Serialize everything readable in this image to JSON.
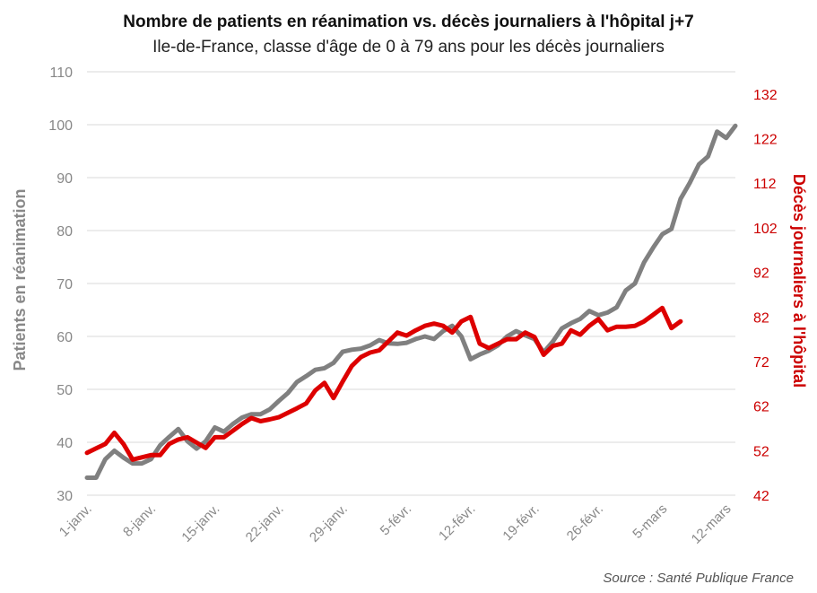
{
  "chart_data": {
    "type": "line",
    "title": "Nombre de patients en réanimation vs. décès journaliers à l'hôpital j+7",
    "subtitle": "Ile-de-France, classe d'âge de 0 à 79 ans pour les décès journaliers",
    "source": "Source : Santé Publique France",
    "ylabel_left": "Patients en réanimation",
    "ylabel_right": "Décès journaliers  à l'hôpital",
    "ylim_left": [
      30,
      110
    ],
    "yticks_left": [
      30,
      40,
      50,
      60,
      70,
      80,
      90,
      100,
      110
    ],
    "ylim_right": [
      42,
      137
    ],
    "yticks_right": [
      42,
      52,
      62,
      72,
      82,
      92,
      102,
      112,
      122,
      132
    ],
    "x_range_days": [
      1,
      72
    ],
    "xticks": [
      {
        "day": 1,
        "label": "1-janv."
      },
      {
        "day": 8,
        "label": "8-janv."
      },
      {
        "day": 15,
        "label": "15-janv."
      },
      {
        "day": 22,
        "label": "22-janv."
      },
      {
        "day": 29,
        "label": "29-janv."
      },
      {
        "day": 36,
        "label": "5-févr."
      },
      {
        "day": 43,
        "label": "12-févr."
      },
      {
        "day": 50,
        "label": "19-févr."
      },
      {
        "day": 57,
        "label": "26-févr."
      },
      {
        "day": 64,
        "label": "5-mars"
      },
      {
        "day": 71,
        "label": "12-mars"
      }
    ],
    "grid": true,
    "series": [
      {
        "axis": "left",
        "color": "#808080",
        "start_day": 1,
        "values": [
          33.3,
          33.3,
          36.8,
          38.4,
          37.1,
          36.0,
          36.0,
          36.8,
          39.4,
          41.0,
          42.5,
          40.2,
          38.8,
          40.2,
          42.8,
          42.0,
          43.5,
          44.7,
          45.3,
          45.3,
          46.2,
          47.8,
          49.3,
          51.4,
          52.5,
          53.7,
          54.0,
          55.0,
          57.1,
          57.5,
          57.7,
          58.3,
          59.3,
          58.7,
          58.6,
          58.8,
          59.5,
          60.0,
          59.5,
          61.0,
          62.0,
          60.0,
          55.7,
          56.6,
          57.3,
          58.3,
          60.0,
          61.0,
          60.2,
          59.5,
          57.0,
          59.0,
          61.5,
          62.5,
          63.3,
          64.8,
          64.0,
          64.5,
          65.5,
          68.7,
          70.0,
          74.0,
          76.8,
          79.3,
          80.3,
          86.0,
          89.0,
          92.5,
          94.0,
          98.7,
          97.5,
          99.8
        ]
      },
      {
        "axis": "right",
        "color": "#dd0000",
        "start_day": 1,
        "values": [
          51.5,
          52.5,
          53.5,
          56.0,
          53.5,
          50.0,
          50.5,
          51.0,
          51.0,
          53.5,
          54.5,
          55.0,
          53.8,
          52.6,
          55.0,
          55.0,
          56.5,
          58.0,
          59.3,
          58.6,
          59.0,
          59.5,
          60.5,
          61.5,
          62.6,
          65.5,
          67.2,
          63.8,
          67.5,
          71.0,
          73.0,
          74.0,
          74.5,
          76.5,
          78.5,
          77.8,
          79.0,
          80.0,
          80.5,
          80.0,
          78.5,
          81.0,
          82.0,
          76.0,
          75.0,
          76.0,
          77.0,
          77.0,
          78.5,
          77.5,
          73.5,
          75.5,
          76.0,
          79.0,
          78.0,
          80.0,
          81.5,
          79.0,
          79.8,
          79.8,
          80.0,
          81.0,
          82.5,
          84.0,
          79.5,
          81.0
        ]
      }
    ]
  }
}
